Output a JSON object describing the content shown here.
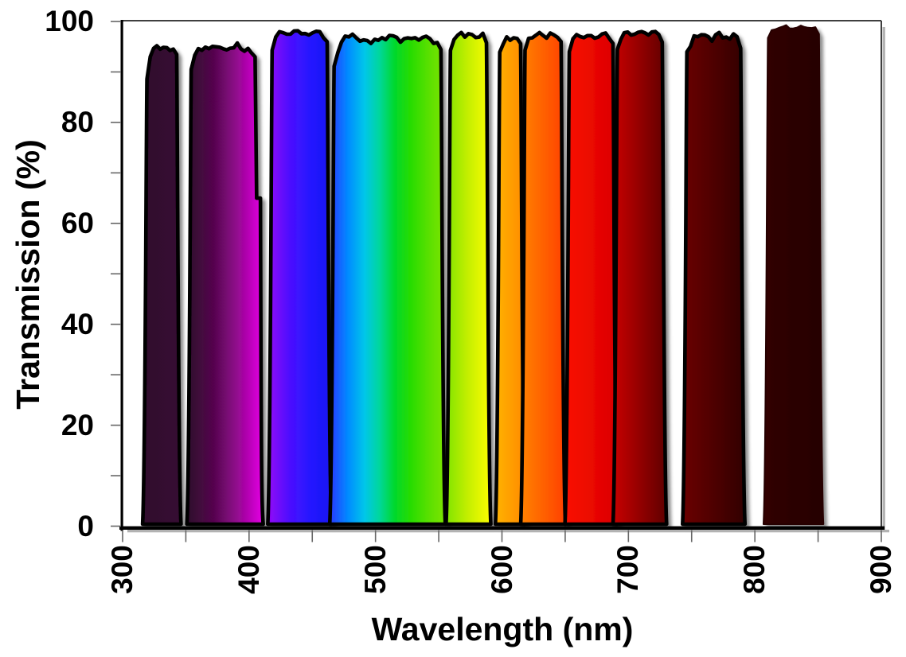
{
  "page": {
    "background": "#ffffff"
  },
  "chart_data": {
    "type": "area",
    "title": "",
    "xlabel": "Wavelength (nm)",
    "ylabel": "Transmission (%)",
    "grid": "off",
    "legend": "none",
    "frame_color": "#3f3f3f",
    "axis_color": "#000000",
    "tick_color": "#666666",
    "shadow_color": "#b3b3b3",
    "x_axis": {
      "min": 300,
      "max": 900,
      "major_tick_step": 100,
      "minor_tick_step": 50,
      "major_tick_labels": [
        "300",
        "400",
        "500",
        "600",
        "700",
        "800",
        "900"
      ],
      "label_rotation_deg": -90
    },
    "y_axis": {
      "min": 0,
      "max": 100,
      "major_tick_step": 20,
      "minor_tick_step": 10,
      "major_tick_labels": [
        "0",
        "20",
        "40",
        "60",
        "80",
        "100"
      ]
    },
    "bands": [
      {
        "name": "filter-320-340",
        "wavelength_range_nm": [
          318,
          344
        ],
        "peak_transmission_pct": 95.3,
        "outlined": true,
        "noise_pct": 0.9,
        "left_corner_drop_pct": 5,
        "color_stops": [
          [
            0,
            "#310b2e"
          ],
          [
            1,
            "#360a31"
          ]
        ]
      },
      {
        "name": "filter-355-405",
        "wavelength_range_nm": [
          353,
          406
        ],
        "peak_transmission_pct": 95.8,
        "outlined": true,
        "noise_pct": 1.6,
        "left_corner_drop_pct": 2.5,
        "right_step": {
          "at_pct": 65,
          "extend_nm": 3
        },
        "color_stops": [
          [
            0,
            "#2d082a"
          ],
          [
            0.35,
            "#55064e"
          ],
          [
            0.65,
            "#90088c"
          ],
          [
            1,
            "#e600e6"
          ]
        ]
      },
      {
        "name": "filter-420-460",
        "wavelength_range_nm": [
          417,
          463
        ],
        "peak_transmission_pct": 98.2,
        "outlined": true,
        "noise_pct": 0.7,
        "left_corner_drop_pct": 1.5,
        "color_stops": [
          [
            0,
            "#9305f5"
          ],
          [
            0.35,
            "#4b0fff"
          ],
          [
            0.7,
            "#2118ff"
          ],
          [
            1,
            "#1b16f0"
          ]
        ]
      },
      {
        "name": "filter-465-555",
        "wavelength_range_nm": [
          466,
          553
        ],
        "peak_transmission_pct": 97.6,
        "outlined": true,
        "noise_pct": 1.7,
        "left_corner_drop_pct": 3,
        "color_stops": [
          [
            0,
            "#2a36ff"
          ],
          [
            0.16,
            "#008cff"
          ],
          [
            0.3,
            "#00c6ea"
          ],
          [
            0.43,
            "#00d79c"
          ],
          [
            0.56,
            "#00d82e"
          ],
          [
            0.7,
            "#27dc00"
          ],
          [
            0.85,
            "#58e000"
          ],
          [
            1,
            "#7de400"
          ]
        ]
      },
      {
        "name": "filter-560-590",
        "wavelength_range_nm": [
          558,
          589
        ],
        "peak_transmission_pct": 97.9,
        "outlined": true,
        "noise_pct": 0.9,
        "left_corner_drop_pct": 1.5,
        "color_stops": [
          [
            0,
            "#80e400"
          ],
          [
            0.5,
            "#c6ef00"
          ],
          [
            1,
            "#fdfd00"
          ]
        ]
      },
      {
        "name": "filter-595-615",
        "wavelength_range_nm": [
          597,
          616
        ],
        "peak_transmission_pct": 97.2,
        "outlined": true,
        "noise_pct": 0.8,
        "left_corner_drop_pct": 1.5,
        "color_stops": [
          [
            0,
            "#ffb300"
          ],
          [
            1,
            "#ff8a00"
          ]
        ]
      },
      {
        "name": "filter-620-645",
        "wavelength_range_nm": [
          617,
          648
        ],
        "peak_transmission_pct": 97.7,
        "outlined": true,
        "noise_pct": 0.8,
        "left_corner_drop_pct": 1.5,
        "color_stops": [
          [
            0,
            "#ff8300"
          ],
          [
            1,
            "#ff4000"
          ]
        ]
      },
      {
        "name": "filter-655-690",
        "wavelength_range_nm": [
          652,
          689
        ],
        "peak_transmission_pct": 97.7,
        "outlined": true,
        "noise_pct": 0.8,
        "left_corner_drop_pct": 1.5,
        "color_stops": [
          [
            0,
            "#fa0f00"
          ],
          [
            1,
            "#db0000"
          ]
        ]
      },
      {
        "name": "filter-690-730",
        "wavelength_range_nm": [
          690,
          728
        ],
        "peak_transmission_pct": 98.2,
        "outlined": true,
        "noise_pct": 0.8,
        "left_corner_drop_pct": 1.5,
        "color_stops": [
          [
            0,
            "#c80000"
          ],
          [
            1,
            "#5f0000"
          ]
        ]
      },
      {
        "name": "filter-745-790",
        "wavelength_range_nm": [
          745,
          790
        ],
        "peak_transmission_pct": 98.0,
        "outlined": true,
        "noise_pct": 1.9,
        "left_corner_drop_pct": 2,
        "color_stops": [
          [
            0,
            "#6b0404"
          ],
          [
            1,
            "#310101"
          ]
        ]
      },
      {
        "name": "filter-810-850",
        "wavelength_range_nm": [
          809,
          852
        ],
        "peak_transmission_pct": 99.2,
        "outlined": false,
        "noise_pct": 0.5,
        "left_corner_drop_pct": 0.8,
        "color_stops": [
          [
            0,
            "#310606"
          ],
          [
            1,
            "#260404"
          ]
        ]
      }
    ]
  }
}
